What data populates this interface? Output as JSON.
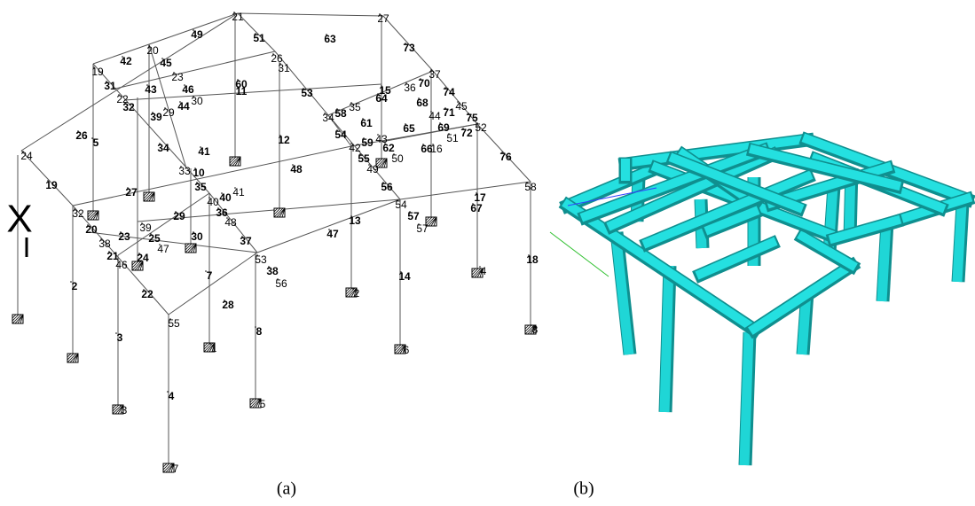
{
  "panel_a": {
    "caption": "(a)",
    "axis_mark": "X",
    "labels": [
      "21",
      "27",
      "49",
      "51",
      "63",
      "73",
      "20",
      "42",
      "45",
      "26",
      "31",
      "19",
      "23",
      "60",
      "11",
      "37",
      "36",
      "70",
      "15",
      "64",
      "31",
      "43",
      "46",
      "53",
      "74",
      "22",
      "30",
      "58",
      "35",
      "68",
      "45",
      "71",
      "32",
      "29",
      "44",
      "39",
      "34",
      "44",
      "75",
      "52",
      "26",
      "5",
      "61",
      "65",
      "69",
      "72",
      "51",
      "12",
      "54",
      "59",
      "43",
      "42",
      "62",
      "66",
      "16",
      "34",
      "41",
      "24",
      "55",
      "50",
      "49",
      "76",
      "48",
      "10",
      "33",
      "19",
      "35",
      "40",
      "41",
      "58",
      "27",
      "56",
      "17",
      "67",
      "40",
      "32",
      "36",
      "29",
      "48",
      "13",
      "57",
      "54",
      "57",
      "39",
      "20",
      "47",
      "23",
      "25",
      "30",
      "47",
      "37",
      "38",
      "21",
      "24",
      "46",
      "53",
      "38",
      "18",
      "56",
      "2",
      "14",
      "7",
      "22",
      "28",
      "55",
      "8",
      "3",
      "4",
      "2",
      "1",
      "6",
      "3",
      "5",
      "7",
      "8",
      "4"
    ]
  },
  "panel_b": {
    "caption": "(b)"
  }
}
